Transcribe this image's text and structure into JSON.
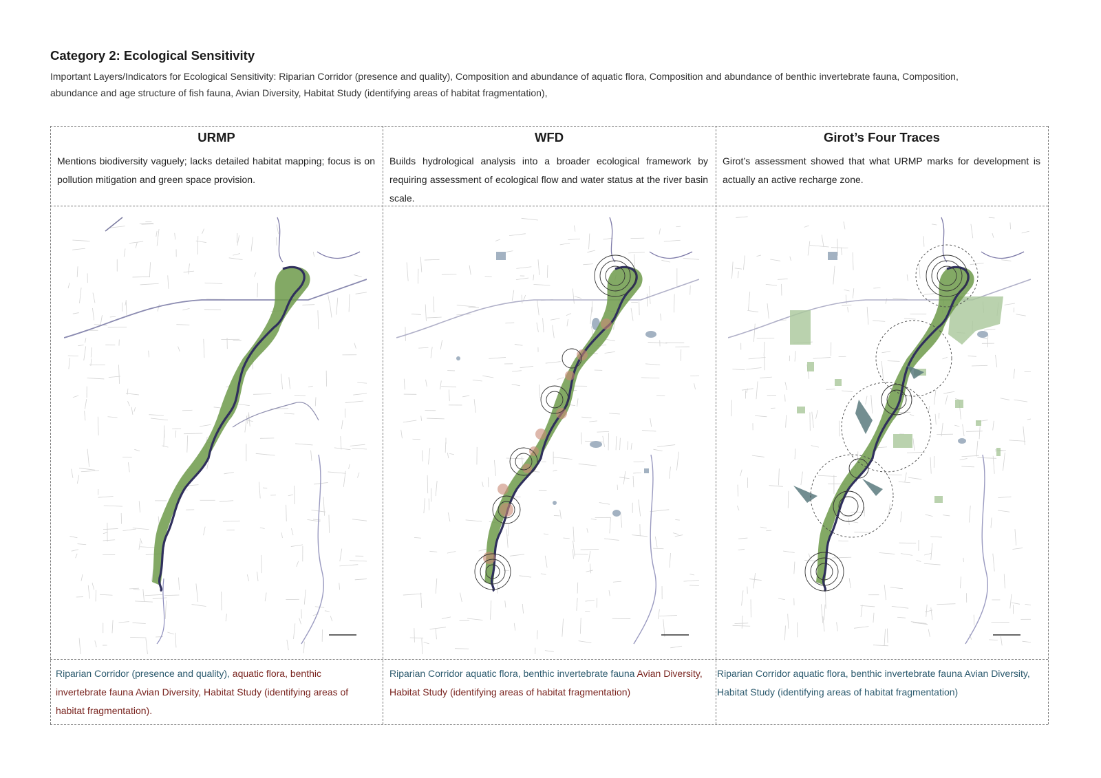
{
  "header": {
    "title": "Category 2: Ecological Sensitivity",
    "intro": "Important Layers/Indicators for Ecological Sensitivity: Riparian Corridor (presence and quality), Composition and abundance of aquatic flora, Composition and abundance of benthic invertebrate fauna, Composition, abundance and age structure of fish fauna, Avian Diversity, Habitat Study (identifying areas of habitat fragmentation),"
  },
  "columns": [
    {
      "title": "URMP",
      "description": "Mentions biodiversity vaguely; lacks detailed habitat mapping; focus is on pollution mitigation and green space provision.",
      "footer_teal": "Riparian Corridor (presence and quality), ",
      "footer_red": "aquatic flora, benthic invertebrate fauna Avian Diversity, Habitat Study (identifying areas of habitat fragmentation)."
    },
    {
      "title": "WFD",
      "description": "Builds hydrological analysis into a broader ecological framework by requiring assessment of ecological flow and water status at the river basin scale.",
      "footer_teal": "Riparian Corridor aquatic flora, benthic invertebrate fauna ",
      "footer_red": "Avian Diversity, Habitat Study (identifying areas of habitat fragmentation)"
    },
    {
      "title": "Girot’s Four Traces",
      "description": "Girot’s assessment showed that what URMP marks for development is actually an active recharge zone.",
      "footer_teal": "Riparian Corridor aquatic flora, benthic invertebrate fauna Avian Diversity, Habitat Study (identifying areas of habitat fragmentation)",
      "footer_red": ""
    }
  ],
  "colors": {
    "river": "#2f2f5c",
    "vegetation": "#6d9a4a",
    "vegetation_light": "#a9c79a",
    "urban_fabric": "#d3d3d3",
    "rings": "#333333",
    "hotspot": "#c98a76",
    "teal_text": "#2c5a6e",
    "red_text": "#7a2520"
  }
}
